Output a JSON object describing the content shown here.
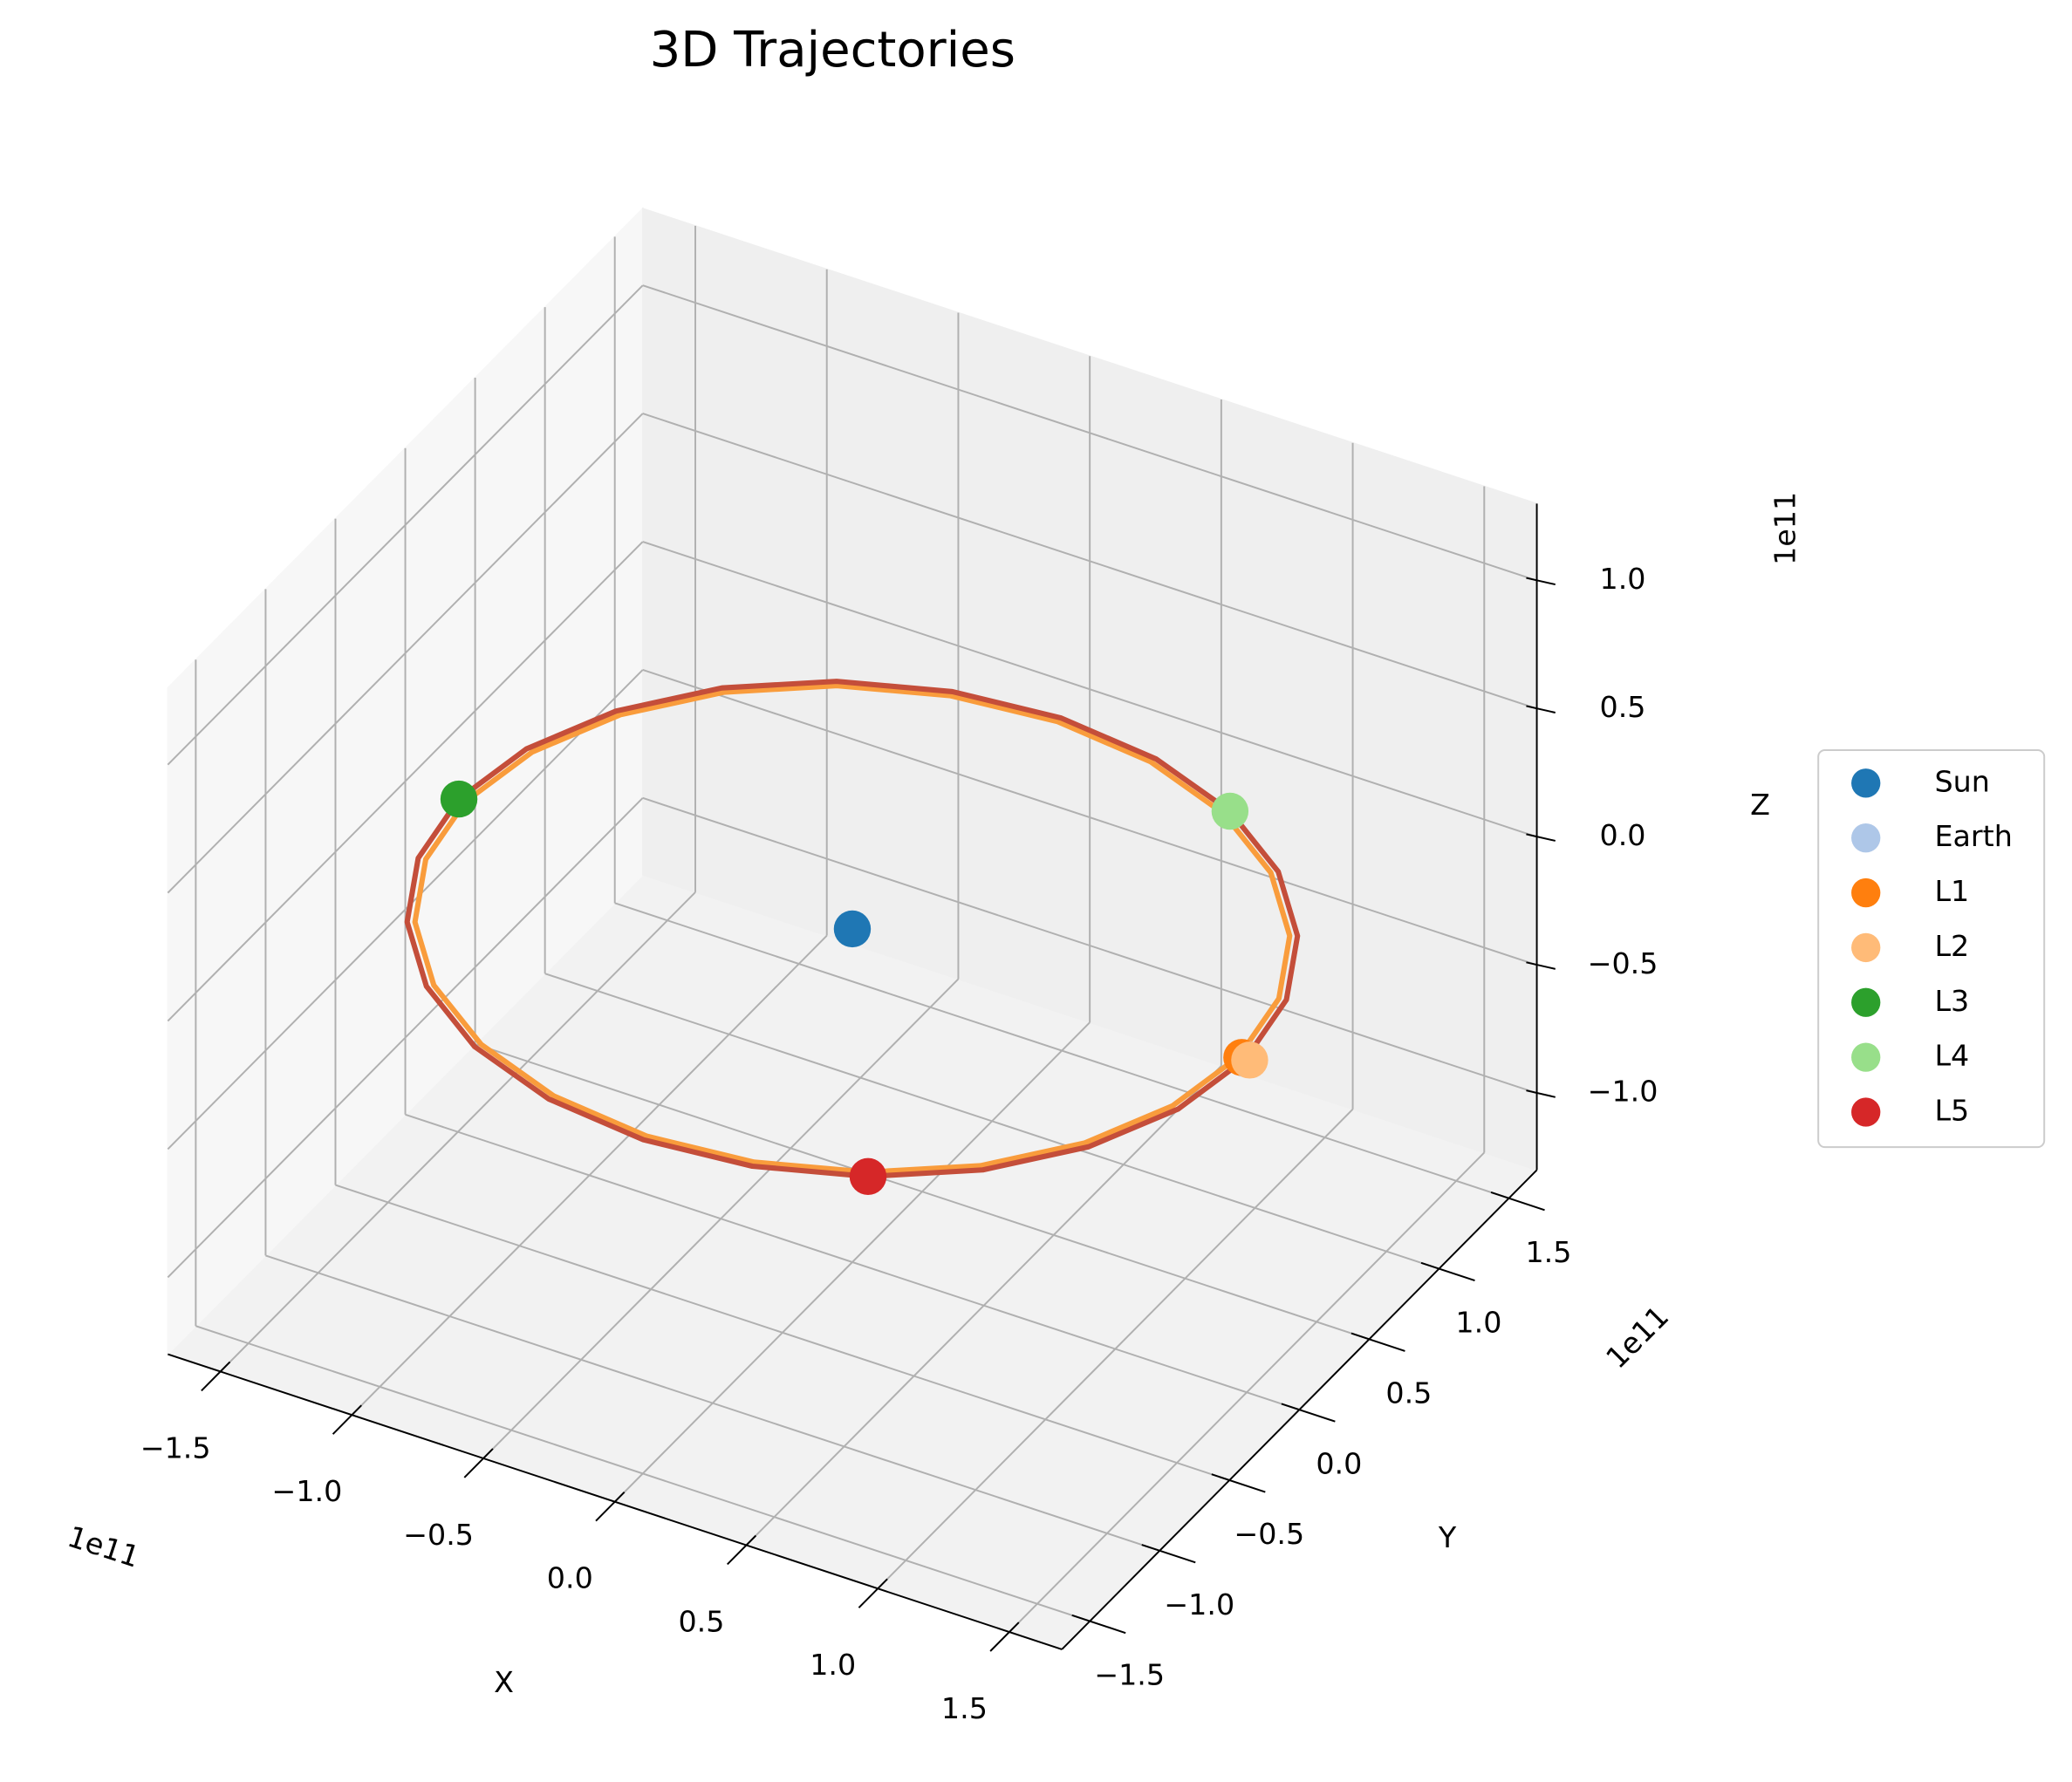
{
  "chart_data": {
    "type": "scatter3d",
    "title": "3D Trajectories",
    "xlabel": "X",
    "ylabel": "Y",
    "zlabel": "Z",
    "x_offset": "1e11",
    "y_offset": "1e11",
    "z_offset": "1e11",
    "xlim": [
      -170000000000.0,
      170000000000.0
    ],
    "ylim": [
      -170000000000.0,
      170000000000.0
    ],
    "zlim": [
      -130000000000.0,
      130000000000.0
    ],
    "xticks": [
      {
        "value": -150000000000.0,
        "label": "−1.5"
      },
      {
        "value": -100000000000.0,
        "label": "−1.0"
      },
      {
        "value": -50000000000.0,
        "label": "−0.5"
      },
      {
        "value": 0,
        "label": "0.0"
      },
      {
        "value": 50000000000.0,
        "label": "0.5"
      },
      {
        "value": 100000000000.0,
        "label": "1.0"
      },
      {
        "value": 150000000000.0,
        "label": "1.5"
      }
    ],
    "yticks": [
      {
        "value": -150000000000.0,
        "label": "−1.5"
      },
      {
        "value": -100000000000.0,
        "label": "−1.0"
      },
      {
        "value": -50000000000.0,
        "label": "−0.5"
      },
      {
        "value": 0,
        "label": "0.0"
      },
      {
        "value": 50000000000.0,
        "label": "0.5"
      },
      {
        "value": 100000000000.0,
        "label": "1.0"
      },
      {
        "value": 150000000000.0,
        "label": "1.5"
      }
    ],
    "zticks": [
      {
        "value": -100000000000.0,
        "label": "−1.0"
      },
      {
        "value": -50000000000.0,
        "label": "−0.5"
      },
      {
        "value": 0,
        "label": "0.0"
      },
      {
        "value": 50000000000.0,
        "label": "0.5"
      },
      {
        "value": 100000000000.0,
        "label": "1.0"
      }
    ],
    "grid": true,
    "legend": "center right",
    "trajectories": [
      {
        "color": "#f99c3c",
        "x": [
          147000000000.0,
          141990000000.0,
          127300000000.0,
          103940000000.0,
          73500000000.0,
          38050000000.0,
          0,
          -38050000000.0,
          -73500000000.0,
          -103940000000.0,
          -127300000000.0,
          -141990000000.0,
          -147000000000.0,
          -141990000000.0,
          -127300000000.0,
          -103940000000.0,
          -73500000000.0,
          -38050000000.0,
          0,
          38050000000.0,
          73500000000.0,
          103940000000.0,
          127300000000.0,
          141990000000.0,
          147000000000.0
        ],
        "y": [
          0,
          38050000000.0,
          73500000000.0,
          103940000000.0,
          127300000000.0,
          141990000000.0,
          147000000000.0,
          141990000000.0,
          127300000000.0,
          103940000000.0,
          73500000000.0,
          38050000000.0,
          0,
          -38050000000.0,
          -73500000000.0,
          -103940000000.0,
          -127300000000.0,
          -141990000000.0,
          -147000000000.0,
          -141990000000.0,
          -127300000000.0,
          -103940000000.0,
          -73500000000.0,
          -38050000000.0,
          0
        ],
        "z": [
          0,
          0,
          0,
          0,
          0,
          0,
          0,
          0,
          0,
          0,
          0,
          0,
          0,
          0,
          0,
          0,
          0,
          0,
          0,
          0,
          0,
          0,
          0,
          0,
          0
        ]
      },
      {
        "color": "#c44e3a",
        "x": [
          149600000000.0,
          144500000000.0,
          129560000000.0,
          105780000000.0,
          74800000000.0,
          38720000000.0,
          0,
          -38720000000.0,
          -74800000000.0,
          -105780000000.0,
          -129560000000.0,
          -144500000000.0,
          -149600000000.0,
          -144500000000.0,
          -129560000000.0,
          -105780000000.0,
          -74800000000.0,
          -38720000000.0,
          0,
          38720000000.0,
          74800000000.0,
          105780000000.0,
          129560000000.0,
          144500000000.0,
          149600000000.0
        ],
        "y": [
          0,
          38720000000.0,
          74800000000.0,
          105780000000.0,
          129560000000.0,
          144500000000.0,
          149600000000.0,
          144500000000.0,
          129560000000.0,
          105780000000.0,
          74800000000.0,
          38720000000.0,
          0,
          -38720000000.0,
          -74800000000.0,
          -105780000000.0,
          -129560000000.0,
          -144500000000.0,
          -149600000000.0,
          -144500000000.0,
          -129560000000.0,
          -105780000000.0,
          -74800000000.0,
          -38720000000.0,
          0
        ],
        "z": [
          0,
          0,
          0,
          0,
          0,
          0,
          0,
          0,
          0,
          0,
          0,
          0,
          0,
          0,
          0,
          0,
          0,
          0,
          0,
          0,
          0,
          0,
          0,
          0,
          0
        ]
      }
    ],
    "series": [
      {
        "name": "Sun",
        "color": "#1f77b4",
        "x": 0,
        "y": 0,
        "z": 0
      },
      {
        "name": "Earth",
        "color": "#aec7e8",
        "x": 149600000000.0,
        "y": 0,
        "z": 0
      },
      {
        "name": "L1",
        "color": "#ff7f0e",
        "x": 148100000000.0,
        "y": 0,
        "z": 0
      },
      {
        "name": "L2",
        "color": "#ffbb78",
        "x": 151100000000.0,
        "y": 0,
        "z": 0
      },
      {
        "name": "L3",
        "color": "#2ca02c",
        "x": -149600000000.0,
        "y": 0,
        "z": 0
      },
      {
        "name": "L4",
        "color": "#98df8a",
        "x": 74800000000.0,
        "y": 129560000000.0,
        "z": 0
      },
      {
        "name": "L5",
        "color": "#d62728",
        "x": 74800000000.0,
        "y": -129560000000.0,
        "z": 0
      }
    ]
  }
}
